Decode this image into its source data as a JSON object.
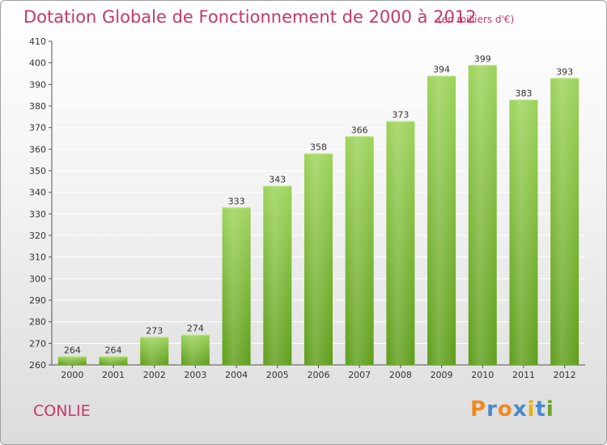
{
  "title": "Dotation Globale de Fonctionnement de 2000 à 2012",
  "unit_note": "(en milliers d'€)",
  "town": "CONLIE",
  "brand": {
    "letters": [
      "P",
      "r",
      "o",
      "x",
      "i",
      "t",
      "i"
    ],
    "colors": [
      "#f18a1f",
      "#4a8ac9",
      "#f18a1f",
      "#4a8ac9",
      "#e9b00d",
      "#4a8ac9",
      "#68a32a"
    ]
  },
  "colors": {
    "accent": "#c8366a",
    "bar_top": "#9dd35a",
    "bar_bottom": "#5f9e1b",
    "grid": "#ffffff"
  },
  "chart_data": {
    "type": "bar",
    "title": "Dotation Globale de Fonctionnement de 2000 à 2012",
    "xlabel": "",
    "ylabel": "",
    "categories": [
      "2000",
      "2001",
      "2002",
      "2003",
      "2004",
      "2005",
      "2006",
      "2007",
      "2008",
      "2009",
      "2010",
      "2011",
      "2012"
    ],
    "values": [
      264,
      264,
      273,
      274,
      333,
      343,
      358,
      366,
      373,
      394,
      399,
      383,
      393
    ],
    "ylim": [
      260,
      410
    ],
    "yticks": [
      260,
      270,
      280,
      290,
      300,
      310,
      320,
      330,
      340,
      350,
      360,
      370,
      380,
      390,
      400,
      410
    ],
    "grid": true,
    "legend": "none"
  }
}
